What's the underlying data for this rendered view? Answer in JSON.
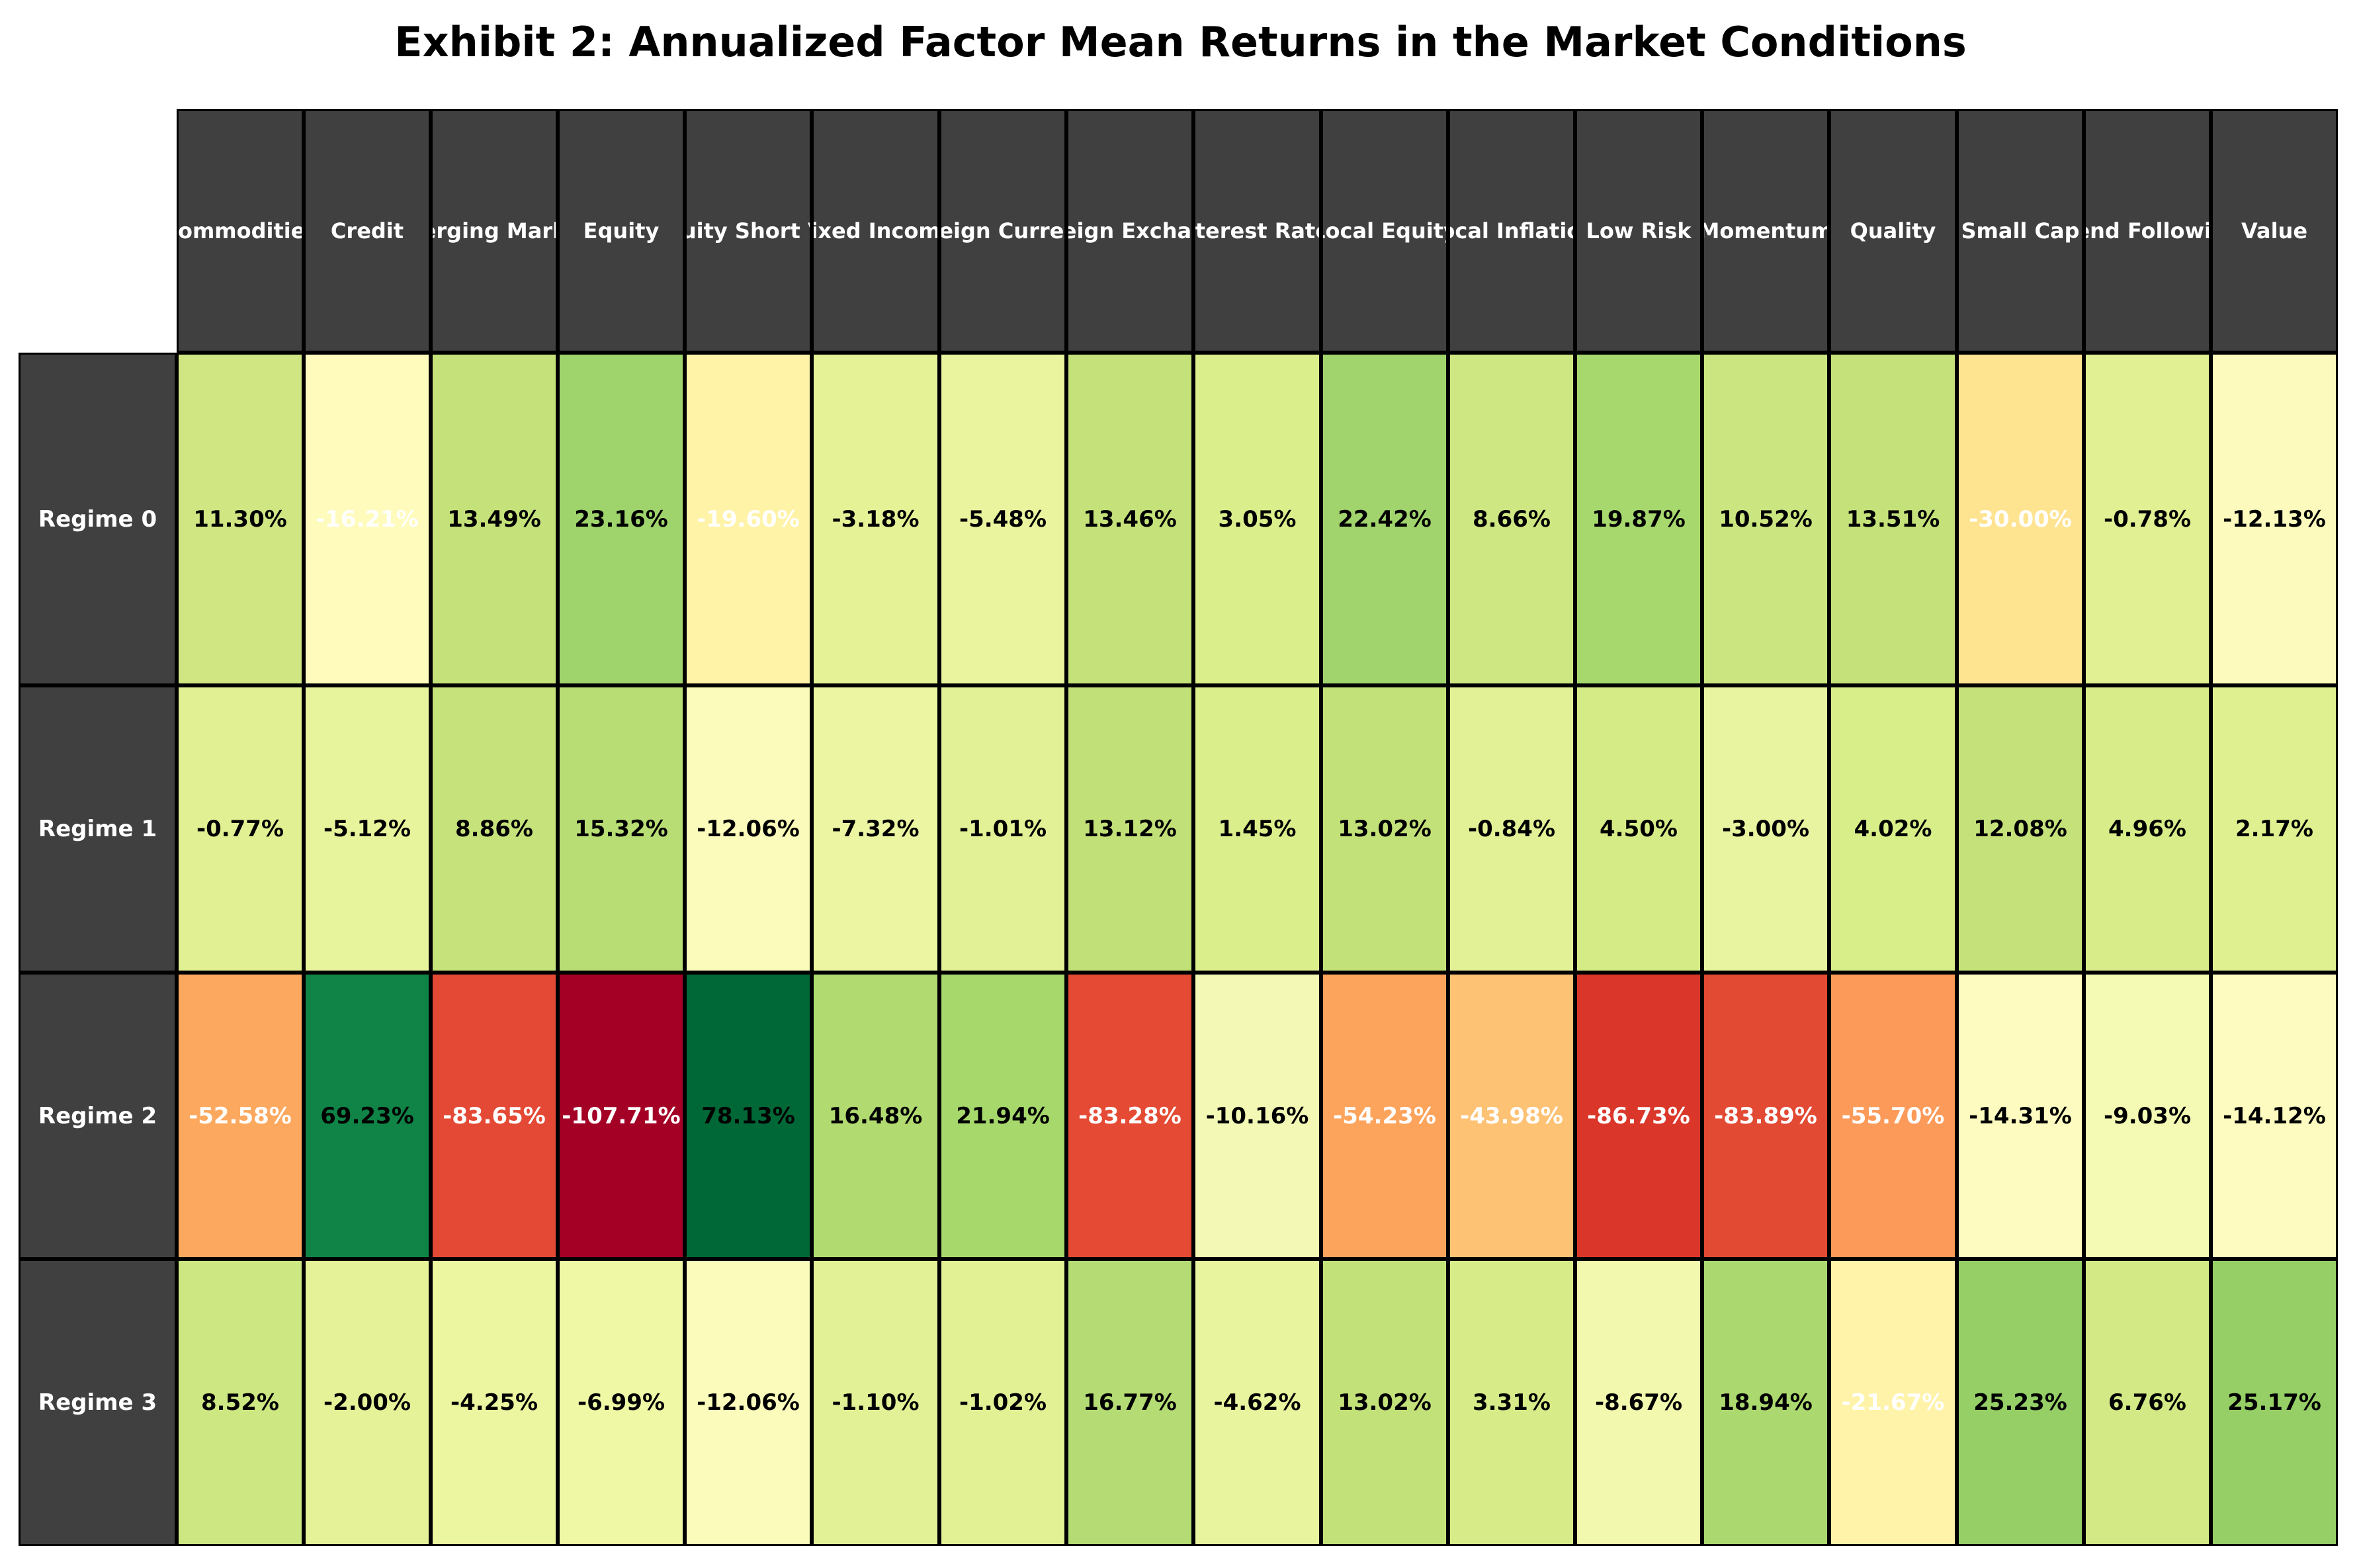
{
  "chart_data": {
    "type": "heatmap",
    "title": "Exhibit 2: Annualized Factor Mean Returns in the Market Conditions",
    "columns": [
      "Commodities",
      "Credit",
      "Emerging Markets",
      "Equity",
      "Equity Short Vol",
      "Fixed Income",
      "Foreign Currency",
      "Foreign Exchange",
      "Interest Rates",
      "Local Equity",
      "Local Inflation",
      "Low Risk",
      "Momentum",
      "Quality",
      "Small Cap",
      "Trend Following",
      "Value"
    ],
    "rows": [
      "Regime 0",
      "Regime 1",
      "Regime 2",
      "Regime 3"
    ],
    "values": [
      [
        11.3,
        -16.21,
        13.49,
        23.16,
        -19.6,
        -3.18,
        -5.48,
        13.46,
        3.05,
        22.42,
        8.66,
        19.87,
        10.52,
        13.51,
        -30.0,
        -0.78,
        -12.13
      ],
      [
        -0.77,
        -5.12,
        8.86,
        15.32,
        -12.06,
        -7.32,
        -1.01,
        13.12,
        1.45,
        13.02,
        -0.84,
        4.5,
        -3.0,
        4.02,
        12.08,
        4.96,
        2.17
      ],
      [
        -52.58,
        69.23,
        -83.65,
        -107.71,
        78.13,
        16.48,
        21.94,
        -83.28,
        -10.16,
        -54.23,
        -43.98,
        -86.73,
        -83.89,
        -55.7,
        -14.31,
        -9.03,
        -14.12
      ],
      [
        8.52,
        -2.0,
        -4.25,
        -6.99,
        -12.06,
        -1.1,
        -1.02,
        16.77,
        -4.62,
        13.02,
        3.31,
        -8.67,
        18.94,
        -21.67,
        25.23,
        6.76,
        25.17
      ]
    ],
    "labels": [
      [
        "11.30%",
        "-16.21%",
        "13.49%",
        "23.16%",
        "-19.60%",
        "-3.18%",
        "-5.48%",
        "13.46%",
        "3.05%",
        "22.42%",
        "8.66%",
        "19.87%",
        "10.52%",
        "13.51%",
        "-30.00%",
        "-0.78%",
        "-12.13%"
      ],
      [
        "-0.77%",
        "-5.12%",
        "8.86%",
        "15.32%",
        "-12.06%",
        "-7.32%",
        "-1.01%",
        "13.12%",
        "1.45%",
        "13.02%",
        "-0.84%",
        "4.50%",
        "-3.00%",
        "4.02%",
        "12.08%",
        "4.96%",
        "2.17%"
      ],
      [
        "-52.58%",
        "69.23%",
        "-83.65%",
        "-107.71%",
        "78.13%",
        "16.48%",
        "21.94%",
        "-83.28%",
        "-10.16%",
        "-54.23%",
        "-43.98%",
        "-86.73%",
        "-83.89%",
        "-55.70%",
        "-14.31%",
        "-9.03%",
        "-14.12%"
      ],
      [
        "8.52%",
        "-2.00%",
        "-4.25%",
        "-6.99%",
        "-12.06%",
        "-1.10%",
        "-1.02%",
        "16.77%",
        "-4.62%",
        "13.02%",
        "3.31%",
        "-8.67%",
        "18.94%",
        "-21.67%",
        "25.23%",
        "6.76%",
        "25.17%"
      ]
    ],
    "cell_colors": [
      [
        "#cfe683",
        "#fefbbd",
        "#c5e27a",
        "#9fd36b",
        "#fff3a8",
        "#e5f296",
        "#eaf49e",
        "#c5e27a",
        "#daee8b",
        "#a1d46d",
        "#cee782",
        "#a7d86e",
        "#cbe680",
        "#c5e27a",
        "#fee391",
        "#e0f092",
        "#fcfbbd"
      ],
      [
        "#e0f092",
        "#e8f49c",
        "#c6e27a",
        "#b7dd74",
        "#fbfbbb",
        "#ebf5a2",
        "#e2f195",
        "#c2e078",
        "#dbee8c",
        "#c3e179",
        "#e2f195",
        "#d5eb86",
        "#e8f49f",
        "#d8ee89",
        "#c4e17a",
        "#d8ec89",
        "#dff090"
      ],
      [
        "#fca85e",
        "#0f8446",
        "#e34934",
        "#a40026",
        "#006837",
        "#b1da71",
        "#a6d86c",
        "#e44a34",
        "#f3f9b5",
        "#fca35c",
        "#fdc273",
        "#da372a",
        "#e34a34",
        "#fb9a59",
        "#fdfbc0",
        "#f4fab3",
        "#fdfbbf"
      ],
      [
        "#cde782",
        "#e5f297",
        "#ecf59f",
        "#eff8a5",
        "#fbfcbc",
        "#e3f196",
        "#e2f194",
        "#b5dc74",
        "#e9f49f",
        "#c3e179",
        "#d7ec88",
        "#f2f8ad",
        "#acd96f",
        "#fff3a9",
        "#95cf66",
        "#d2e985",
        "#95cf66"
      ]
    ],
    "label_colors": [
      [
        "#000000",
        "#ffffff",
        "#000000",
        "#000000",
        "#ffffff",
        "#000000",
        "#000000",
        "#000000",
        "#000000",
        "#000000",
        "#000000",
        "#000000",
        "#000000",
        "#000000",
        "#ffffff",
        "#000000",
        "#000000"
      ],
      [
        "#000000",
        "#000000",
        "#000000",
        "#000000",
        "#000000",
        "#000000",
        "#000000",
        "#000000",
        "#000000",
        "#000000",
        "#000000",
        "#000000",
        "#000000",
        "#000000",
        "#000000",
        "#000000",
        "#000000"
      ],
      [
        "#ffffff",
        "#000000",
        "#ffffff",
        "#ffffff",
        "#000000",
        "#000000",
        "#000000",
        "#ffffff",
        "#000000",
        "#ffffff",
        "#ffffff",
        "#ffffff",
        "#ffffff",
        "#ffffff",
        "#000000",
        "#000000",
        "#000000"
      ],
      [
        "#000000",
        "#000000",
        "#000000",
        "#000000",
        "#000000",
        "#000000",
        "#000000",
        "#000000",
        "#000000",
        "#000000",
        "#000000",
        "#000000",
        "#000000",
        "#ffffff",
        "#000000",
        "#000000",
        "#000000"
      ]
    ],
    "header_color": "#404040"
  }
}
